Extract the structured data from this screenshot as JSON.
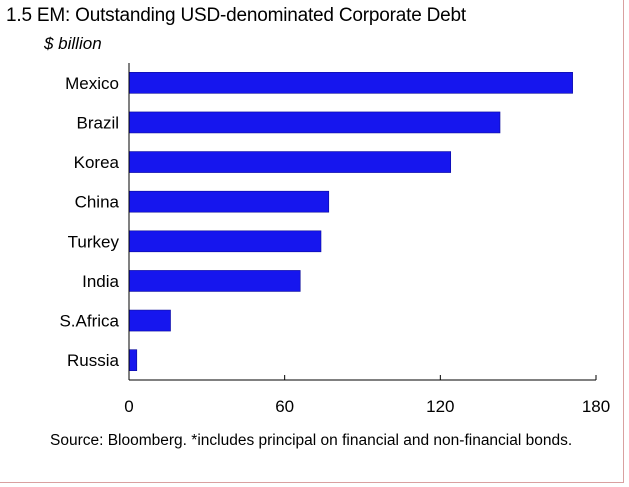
{
  "header": {
    "title": "1.5 EM: Outstanding USD-denominated Corporate Debt",
    "unit": "$ billion"
  },
  "footer": {
    "source": "Source: Bloomberg. *includes principal on financial and non-financial bonds."
  },
  "chart_data": {
    "type": "bar",
    "orientation": "horizontal",
    "title": "1.5 EM: Outstanding USD-denominated Corporate Debt",
    "ylabel": "$ billion",
    "categories": [
      "Mexico",
      "Brazil",
      "Korea",
      "China",
      "Turkey",
      "India",
      "S.Africa",
      "Russia"
    ],
    "values": [
      171,
      143,
      124,
      77,
      74,
      66,
      16,
      3
    ],
    "xlim": [
      0,
      180
    ],
    "xticks": [
      0,
      60,
      120,
      180
    ],
    "grid": false,
    "bar_color": "#1616ee"
  }
}
